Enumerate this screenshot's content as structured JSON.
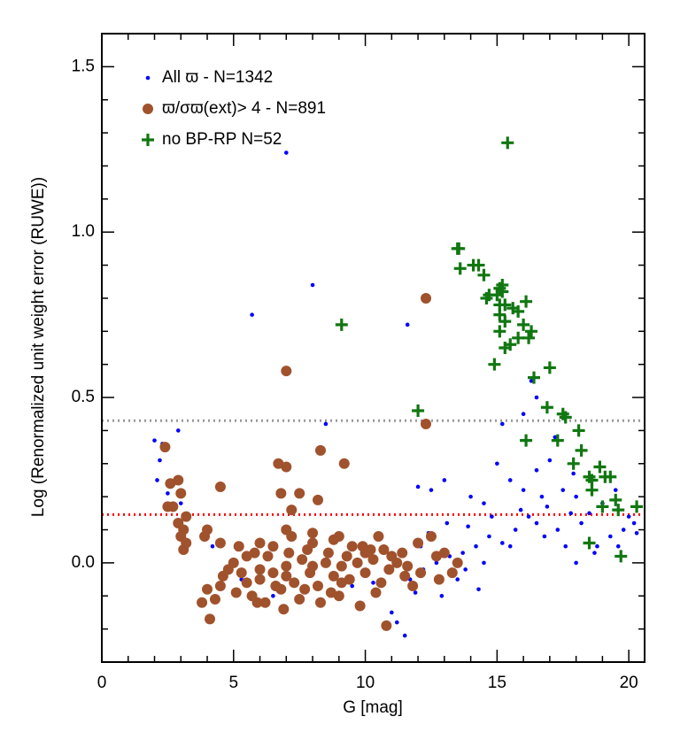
{
  "chart_data": {
    "type": "scatter",
    "xlabel": "G [mag]",
    "ylabel": "Log (Renormalized unit weight error (RUWE))",
    "xlim": [
      0,
      20.6
    ],
    "ylim": [
      -0.3,
      1.6
    ],
    "xticks": [
      0,
      5,
      10,
      15,
      20
    ],
    "yticks": [
      {
        "value": 0,
        "label": "0.0"
      },
      {
        "value": 0.5,
        "label": "0.5"
      },
      {
        "value": 1,
        "label": "1.0"
      },
      {
        "value": 1.5,
        "label": "1.5"
      }
    ],
    "xminorticks": [
      1,
      2,
      3,
      4,
      6,
      7,
      8,
      9,
      11,
      12,
      13,
      14,
      16,
      17,
      18,
      19
    ],
    "yminorticks": [
      -0.2,
      -0.1,
      0.1,
      0.2,
      0.3,
      0.4,
      0.6,
      0.7,
      0.8,
      0.9,
      1.1,
      1.2,
      1.3,
      1.4
    ],
    "hlines": [
      {
        "y": 0.43,
        "color": "#999999"
      },
      {
        "y": 0.146,
        "color": "#ff0000"
      }
    ],
    "legend": "upper left",
    "series": [
      {
        "name": "All ϖ - N=1342",
        "color": "#0000ff",
        "marker": "dot",
        "x": [
          7.0,
          8.0,
          5.7,
          11.6,
          8.5,
          2.3,
          2.9,
          2.0,
          2.2,
          2.5,
          2.1,
          16.3,
          16.5,
          16.0,
          15.2,
          17.2,
          12.0,
          12.5,
          13.0,
          14.0,
          14.5,
          15.0,
          15.5,
          16.0,
          16.5,
          17.0,
          17.5,
          18.0,
          18.5,
          19.0,
          19.5,
          20.0,
          20.2,
          19.8,
          19.3,
          18.8,
          18.2,
          17.8,
          17.3,
          16.8,
          16.2,
          15.7,
          15.2,
          14.7,
          14.2,
          13.7,
          13.2,
          12.7,
          12.2,
          11.7,
          11.5,
          11.2,
          11.0,
          13.5,
          14.5,
          15.5,
          16.5,
          17.6,
          18.0,
          12.9,
          13.8,
          14.3,
          12.4,
          13.1,
          14.8,
          15.9,
          16.7,
          17.9,
          19.6,
          20.3,
          3.0,
          4.2,
          5.3,
          6.5,
          9.5,
          10.3,
          11.9,
          12.1,
          13.9,
          16.9,
          18.7
        ],
        "values": [
          1.24,
          0.84,
          0.75,
          0.72,
          0.42,
          0.36,
          0.4,
          0.37,
          0.31,
          0.21,
          0.25,
          0.55,
          0.5,
          0.45,
          0.42,
          0.38,
          0.23,
          0.22,
          0.25,
          0.2,
          0.18,
          0.3,
          0.25,
          0.22,
          0.28,
          0.31,
          0.22,
          0.2,
          0.15,
          0.18,
          0.22,
          0.14,
          0.12,
          0.1,
          0.08,
          0.05,
          0.12,
          0.15,
          0.1,
          0.08,
          0.14,
          0.1,
          0.06,
          0.08,
          0.05,
          0.03,
          0.02,
          0.0,
          -0.02,
          -0.05,
          -0.22,
          -0.18,
          -0.15,
          -0.05,
          0.0,
          0.05,
          0.12,
          0.05,
          0.0,
          -0.1,
          -0.02,
          -0.08,
          0.09,
          0.12,
          0.14,
          0.16,
          0.2,
          0.27,
          0.05,
          0.09,
          0.18,
          0.05,
          -0.05,
          -0.1,
          -0.07,
          -0.06,
          -0.09,
          0.05,
          0.11,
          0.17,
          0.03
        ]
      },
      {
        "name": "ϖ/σϖ(ext)> 4  - N=891",
        "color": "#a0522d",
        "marker": "circle",
        "x": [
          12.3,
          7.0,
          12.3,
          8.3,
          9.2,
          6.7,
          7.0,
          2.4,
          2.6,
          2.9,
          3.0,
          2.5,
          2.7,
          4.5,
          6.8,
          7.5,
          7.2,
          8.2,
          3.2,
          2.9,
          3.1,
          3.0,
          3.2,
          3.1,
          3.9,
          4.0,
          4.5,
          5.2,
          5.8,
          6.5,
          7.2,
          8.0,
          8.8,
          9.5,
          10.2,
          11.0,
          12.0,
          12.5,
          12.7,
          13.3,
          13.5,
          4.1,
          3.8,
          4.0,
          4.5,
          4.8,
          5.0,
          5.5,
          5.7,
          6.0,
          6.2,
          6.5,
          6.8,
          7.0,
          7.3,
          7.6,
          7.9,
          8.2,
          8.5,
          8.8,
          9.1,
          9.4,
          9.7,
          10.0,
          10.3,
          10.6,
          10.9,
          11.2,
          11.5,
          11.8,
          12.1,
          10.8,
          9.8,
          9.0,
          8.3,
          7.5,
          6.9,
          5.9,
          5.1,
          4.3,
          5.5,
          6.3,
          7.1,
          7.8,
          8.6,
          9.3,
          10.0,
          10.7,
          11.4,
          6.0,
          7.0,
          8.0,
          9.0,
          10.5,
          9.1,
          8.0,
          7.0,
          6.0,
          5.3,
          4.6,
          10.4,
          11.6,
          12.8,
          13.0,
          9.9,
          8.7,
          7.7,
          6.6
        ],
        "values": [
          0.8,
          0.58,
          0.42,
          0.34,
          0.3,
          0.3,
          0.29,
          0.35,
          0.24,
          0.25,
          0.21,
          0.17,
          0.17,
          0.23,
          0.21,
          0.21,
          0.16,
          0.19,
          0.14,
          0.12,
          0.1,
          0.08,
          0.06,
          0.04,
          0.08,
          0.1,
          0.06,
          0.05,
          0.03,
          0.05,
          0.08,
          0.06,
          0.07,
          0.05,
          0.04,
          0.02,
          0.06,
          0.08,
          0.02,
          -0.03,
          0.0,
          -0.17,
          -0.12,
          -0.08,
          -0.07,
          -0.02,
          0.0,
          -0.06,
          -0.1,
          -0.05,
          -0.12,
          -0.03,
          -0.08,
          -0.01,
          -0.06,
          0.01,
          -0.03,
          -0.07,
          0.0,
          -0.04,
          -0.01,
          -0.05,
          0.0,
          -0.03,
          0.01,
          -0.06,
          -0.02,
          0.0,
          -0.04,
          -0.07,
          -0.03,
          -0.19,
          -0.13,
          -0.1,
          -0.12,
          -0.11,
          -0.14,
          -0.12,
          -0.09,
          -0.11,
          0.02,
          0.02,
          0.03,
          0.04,
          0.03,
          0.02,
          0.03,
          0.04,
          0.03,
          0.06,
          0.1,
          0.09,
          0.08,
          0.08,
          -0.06,
          -0.01,
          -0.04,
          -0.02,
          -0.03,
          -0.04,
          -0.09,
          -0.01,
          -0.05,
          0.03,
          0.05,
          -0.09,
          -0.08,
          -0.07
        ]
      },
      {
        "name": "no BP-RP  N=52",
        "color": "#117711",
        "marker": "plus",
        "x": [
          15.4,
          13.5,
          13.55,
          13.6,
          14.1,
          14.3,
          14.5,
          14.7,
          14.6,
          15.1,
          15.2,
          15.0,
          15.1,
          15.3,
          15.6,
          15.8,
          16.1,
          15.1,
          15.3,
          16.0,
          16.3,
          16.2,
          15.3,
          15.5,
          15.1,
          14.9,
          15.8,
          17.0,
          16.4,
          16.9,
          17.5,
          17.6,
          16.1,
          17.3,
          18.1,
          18.2,
          17.9,
          18.9,
          19.1,
          18.5,
          19.3,
          18.6,
          19.5,
          20.3,
          19.0,
          19.6,
          18.5,
          19.7,
          9.1,
          12.0,
          18.6,
          15.2
        ],
        "values": [
          1.27,
          0.95,
          0.95,
          0.89,
          0.9,
          0.9,
          0.87,
          0.81,
          0.8,
          0.83,
          0.84,
          0.81,
          0.78,
          0.78,
          0.77,
          0.76,
          0.79,
          0.75,
          0.73,
          0.72,
          0.7,
          0.68,
          0.65,
          0.66,
          0.7,
          0.6,
          0.68,
          0.59,
          0.56,
          0.47,
          0.45,
          0.44,
          0.37,
          0.37,
          0.4,
          0.34,
          0.3,
          0.29,
          0.26,
          0.26,
          0.26,
          0.22,
          0.19,
          0.17,
          0.17,
          0.16,
          0.06,
          0.02,
          0.72,
          0.46,
          0.25,
          0.82
        ]
      }
    ]
  }
}
